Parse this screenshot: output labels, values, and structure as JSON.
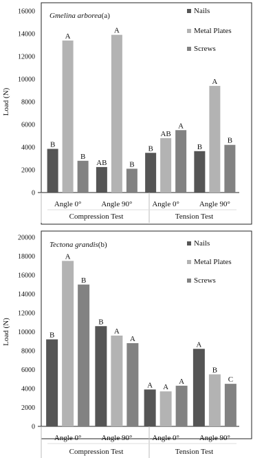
{
  "chart_data": [
    {
      "type": "bar",
      "title_species": "Gmelina arborea",
      "title_suffix": "(a)",
      "ylabel": "Load (N)",
      "ylim": [
        0,
        16000
      ],
      "yticks": [
        "0",
        "2000",
        "4000",
        "6000",
        "8000",
        "10000",
        "12000",
        "14000",
        "16000"
      ],
      "categories": [
        "Angle 0°",
        "Angle 90°",
        "Angle 0°",
        "Angle 90°"
      ],
      "groups": [
        "Compression Test",
        "Tension Test"
      ],
      "series": [
        {
          "name": "Nails",
          "color": "#555555",
          "values": [
            3850,
            2250,
            3500,
            3650
          ],
          "letters": [
            "B",
            "AB",
            "B",
            "B"
          ]
        },
        {
          "name": "Metal Plates",
          "color": "#b3b3b3",
          "values": [
            13400,
            13900,
            4800,
            9400
          ],
          "letters": [
            "A",
            "A",
            "AB",
            "A"
          ]
        },
        {
          "name": "Screws",
          "color": "#828282",
          "values": [
            2800,
            2100,
            5500,
            4200
          ],
          "letters": [
            "B",
            "B",
            "A",
            "B"
          ]
        }
      ],
      "legend_position": "top-right",
      "grid": false
    },
    {
      "type": "bar",
      "title_species": "Tectona grandis",
      "title_suffix": "(b)",
      "ylabel": "Load (N)",
      "ylim": [
        0,
        20000
      ],
      "yticks": [
        "0",
        "2000",
        "4000",
        "6000",
        "8000",
        "10000",
        "12000",
        "14000",
        "16000",
        "18000",
        "20000"
      ],
      "categories": [
        "Angle 0°",
        "Angle 90°",
        "Angle 0°",
        "Angle 90°"
      ],
      "groups": [
        "Compression Test",
        "Tension Test"
      ],
      "series": [
        {
          "name": "Nails",
          "color": "#555555",
          "values": [
            9200,
            10600,
            3900,
            8200
          ],
          "letters": [
            "B",
            "B",
            "A",
            "A"
          ]
        },
        {
          "name": "Metal Plates",
          "color": "#b3b3b3",
          "values": [
            17500,
            9600,
            3700,
            5500
          ],
          "letters": [
            "A",
            "A",
            "A",
            "B"
          ]
        },
        {
          "name": "Screws",
          "color": "#828282",
          "values": [
            15000,
            8800,
            4300,
            4500
          ],
          "letters": [
            "B",
            "A",
            "A",
            "C"
          ]
        }
      ],
      "legend_position": "top-right",
      "grid": false
    }
  ]
}
